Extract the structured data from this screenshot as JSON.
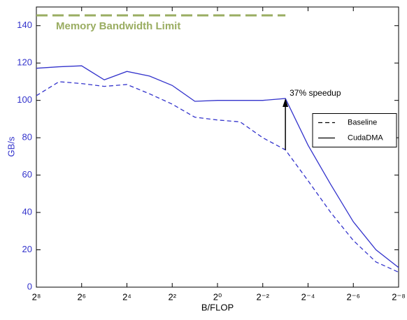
{
  "chart_data": {
    "type": "line",
    "x_label": "B/FLOP",
    "y_label": "GB/s",
    "x": [
      256,
      128,
      64,
      32,
      16,
      8,
      4,
      2,
      1,
      0.5,
      0.25,
      0.125,
      0.0625,
      0.03125,
      0.015625,
      0.0078125,
      0.00390625
    ],
    "xscale": "log2",
    "xlim": [
      256,
      0.00390625
    ],
    "xticks": [
      {
        "value": 256,
        "label": "2⁸"
      },
      {
        "value": 64,
        "label": "2⁶"
      },
      {
        "value": 16,
        "label": "2⁴"
      },
      {
        "value": 4,
        "label": "2²"
      },
      {
        "value": 1,
        "label": "2⁰"
      },
      {
        "value": 0.25,
        "label": "2⁻²"
      },
      {
        "value": 0.0625,
        "label": "2⁻⁴"
      },
      {
        "value": 0.015625,
        "label": "2⁻⁶"
      },
      {
        "value": 0.00390625,
        "label": "2⁻⁸"
      }
    ],
    "ylim": [
      0,
      150
    ],
    "yticks": [
      0,
      20,
      40,
      60,
      80,
      100,
      120,
      140
    ],
    "series": [
      {
        "name": "Baseline",
        "color": "#3333cc",
        "dash": true,
        "values": [
          102.5,
          110,
          109,
          107.5,
          108.5,
          103.5,
          98,
          91,
          89.5,
          88.5,
          80,
          73.5,
          57,
          40,
          25,
          13.5,
          8
        ]
      },
      {
        "name": "CudaDMA",
        "color": "#3333cc",
        "dash": false,
        "values": [
          117.2,
          118,
          118.5,
          111,
          115.5,
          113,
          108,
          99.5,
          100,
          100,
          100,
          101,
          76,
          55,
          35,
          20,
          10.5
        ]
      }
    ],
    "limit_line": {
      "text": "Memory Bandwidth Limit",
      "value": 145.5,
      "color": "#9aad62"
    },
    "arrow_annotation": {
      "text": "37% speedup",
      "x": 0.125,
      "from": 73.5,
      "to": 101
    },
    "legend": "center right"
  }
}
